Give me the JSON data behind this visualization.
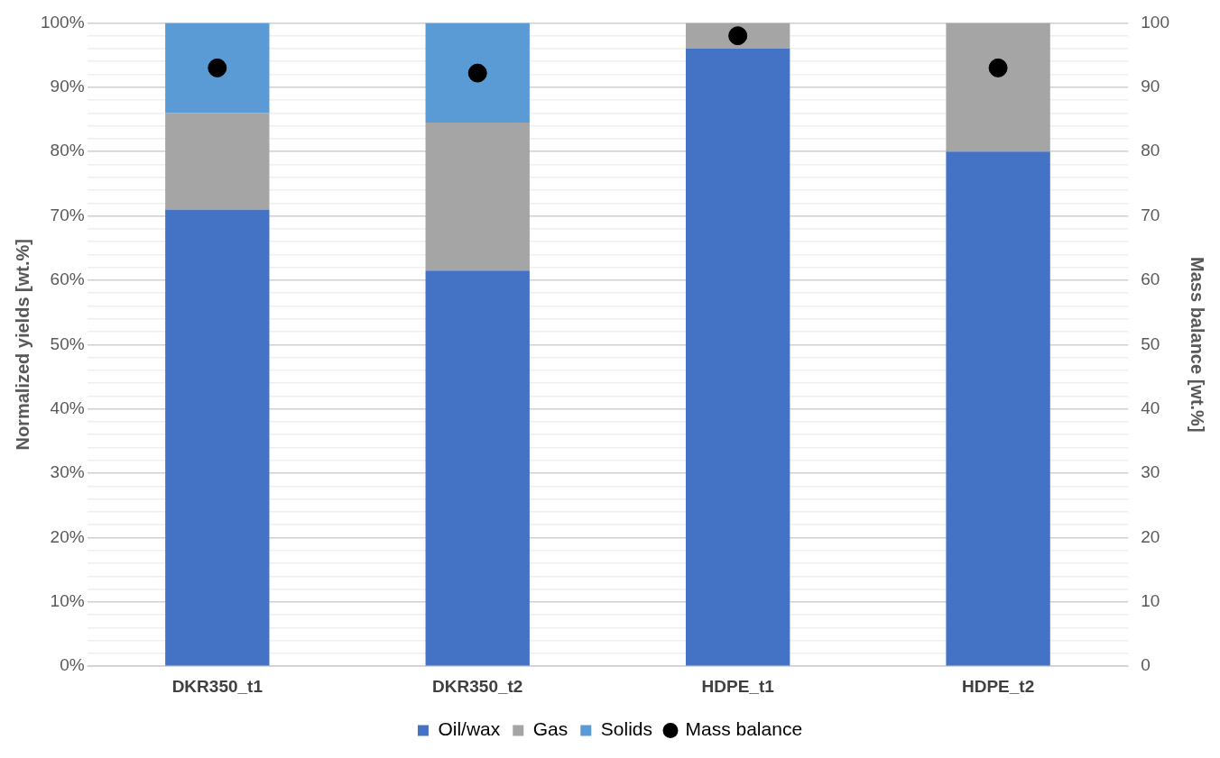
{
  "chart_data": {
    "type": "bar",
    "stacked": true,
    "ylabel": "Normalized yields [wt.%]",
    "y2label": "Mass balance [wt.%]",
    "categories": [
      "DKR350_t1",
      "DKR350_t2",
      "HDPE_t1",
      "HDPE_t2"
    ],
    "series": [
      {
        "name": "Oil/wax",
        "color": "#4472c4",
        "values": [
          71,
          61.5,
          96,
          80
        ]
      },
      {
        "name": "Gas",
        "color": "#a5a5a5",
        "values": [
          15,
          23,
          4,
          20
        ]
      },
      {
        "name": "Solids",
        "color": "#5b9bd5",
        "values": [
          14,
          15.5,
          null,
          null
        ]
      },
      {
        "name": "Mass balance",
        "type": "scatter",
        "axis": "y2",
        "marker": "circle",
        "color": "#000000",
        "x": [
          "DKR350_t1",
          "DKR350_t2",
          "HDPE_t1",
          "HDPE_t2"
        ],
        "values": [
          93,
          92.2,
          98,
          93
        ]
      }
    ],
    "ylim": [
      0,
      100
    ],
    "yticks": [
      {
        "value": 0,
        "label": "0%"
      },
      {
        "value": 2,
        "label": null
      },
      {
        "value": 4,
        "label": null
      },
      {
        "value": 6,
        "label": null
      },
      {
        "value": 8,
        "label": null
      },
      {
        "value": 10,
        "label": "10%"
      },
      {
        "value": 12,
        "label": null
      },
      {
        "value": 14,
        "label": null
      },
      {
        "value": 16,
        "label": null
      },
      {
        "value": 18,
        "label": null
      },
      {
        "value": 20,
        "label": "20%"
      },
      {
        "value": 22,
        "label": null
      },
      {
        "value": 24,
        "label": null
      },
      {
        "value": 26,
        "label": null
      },
      {
        "value": 28,
        "label": null
      },
      {
        "value": 30,
        "label": "30%"
      },
      {
        "value": 32,
        "label": null
      },
      {
        "value": 34,
        "label": null
      },
      {
        "value": 36,
        "label": null
      },
      {
        "value": 38,
        "label": null
      },
      {
        "value": 40,
        "label": "40%"
      },
      {
        "value": 42,
        "label": null
      },
      {
        "value": 44,
        "label": null
      },
      {
        "value": 46,
        "label": null
      },
      {
        "value": 48,
        "label": null
      },
      {
        "value": 50,
        "label": "50%"
      },
      {
        "value": 52,
        "label": null
      },
      {
        "value": 54,
        "label": null
      },
      {
        "value": 56,
        "label": null
      },
      {
        "value": 58,
        "label": null
      },
      {
        "value": 60,
        "label": "60%"
      },
      {
        "value": 62,
        "label": null
      },
      {
        "value": 64,
        "label": null
      },
      {
        "value": 66,
        "label": null
      },
      {
        "value": 68,
        "label": null
      },
      {
        "value": 70,
        "label": "70%"
      },
      {
        "value": 72,
        "label": null
      },
      {
        "value": 74,
        "label": null
      },
      {
        "value": 76,
        "label": null
      },
      {
        "value": 78,
        "label": null
      },
      {
        "value": 80,
        "label": "80%"
      },
      {
        "value": 82,
        "label": null
      },
      {
        "value": 84,
        "label": null
      },
      {
        "value": 86,
        "label": null
      },
      {
        "value": 88,
        "label": null
      },
      {
        "value": 90,
        "label": "90%"
      },
      {
        "value": 92,
        "label": null
      },
      {
        "value": 94,
        "label": null
      },
      {
        "value": 96,
        "label": null
      },
      {
        "value": 98,
        "label": null
      },
      {
        "value": 100,
        "label": "100%"
      }
    ],
    "y2lim": [
      0,
      100
    ],
    "y2ticks": [
      0,
      10,
      20,
      30,
      40,
      50,
      60,
      70,
      80,
      90,
      100
    ],
    "grid": "y",
    "legend": "bottom"
  }
}
